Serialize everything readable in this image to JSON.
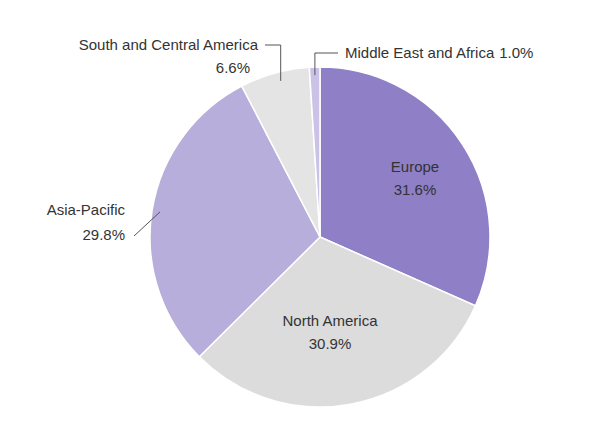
{
  "chart_data": {
    "type": "pie",
    "categories": [
      "Europe",
      "North America",
      "Asia-Pacific",
      "South and Central America",
      "Middle East and Africa"
    ],
    "values": [
      31.6,
      30.9,
      29.8,
      6.6,
      1.0
    ],
    "value_labels": [
      "31.6%",
      "30.9%",
      "29.8%",
      "6.6%",
      "1.0%"
    ],
    "colors": [
      "#8e7fc6",
      "#dcdcdc",
      "#b8aedb",
      "#e4e4e4",
      "#cbc2e8"
    ],
    "data_labels": true
  }
}
